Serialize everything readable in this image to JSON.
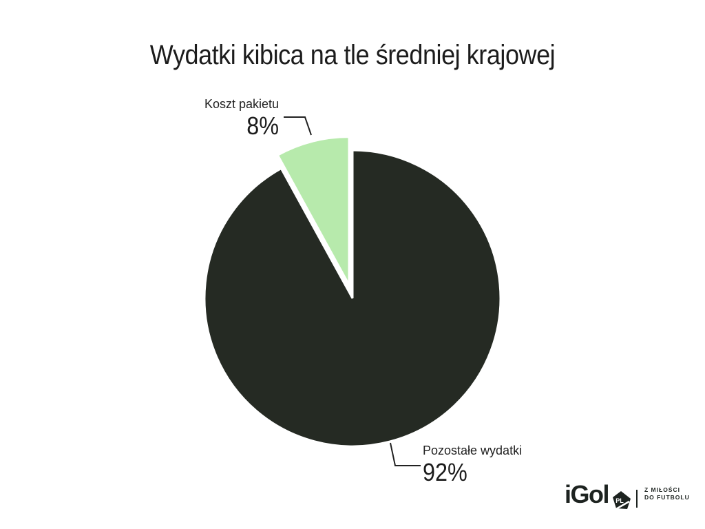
{
  "page": {
    "background_color": "#ffffff"
  },
  "header": {
    "title": "Wydatki kibica na tle średniej krajowej"
  },
  "chart_data": {
    "type": "pie",
    "title": "Wydatki kibica na tle średniej krajowej",
    "unit": "%",
    "direction": "clockwise",
    "start_angle_offset_deg": -28.8,
    "legend_position": "none",
    "labels_style": "callout-lines",
    "slices": [
      {
        "label": "Koszt pakietu",
        "value": 8,
        "display_value": "8%",
        "color": "#b7eaac",
        "exploded": true
      },
      {
        "label": "Pozostałe wydatki",
        "value": 92,
        "display_value": "92%",
        "color": "#252a23",
        "exploded": false
      }
    ]
  },
  "callouts": {
    "koszt": {
      "label": "Koszt pakietu",
      "value": "8%"
    },
    "pozostale": {
      "label": "Pozostałe wydatki",
      "value": "92%"
    }
  },
  "logo": {
    "wordmark": "iGol",
    "badge_text": "PL",
    "tagline_line1": "Z MIŁOŚCI",
    "tagline_line2": "DO FUTBOLU"
  },
  "colors": {
    "slice_highlight": "#b7eaac",
    "slice_main": "#252a23",
    "slice_gap": "#ffffff",
    "leader_line": "#212121",
    "text": "#1c1c1c",
    "logo": "#1d2320"
  }
}
